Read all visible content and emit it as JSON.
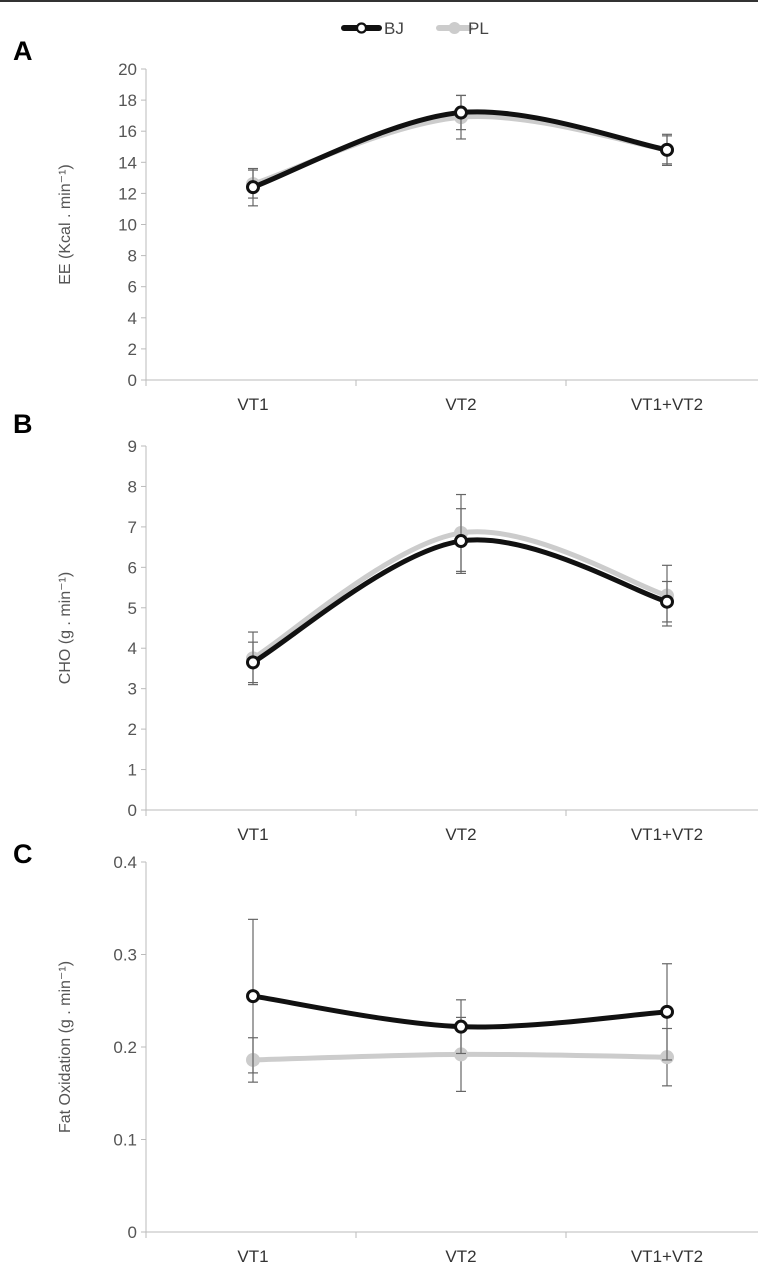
{
  "legend": [
    {
      "name": "BJ",
      "color": "#111111"
    },
    {
      "name": "PL",
      "color": "#cccccc"
    }
  ],
  "chart_data": [
    {
      "type": "line",
      "panel": "A",
      "ylabel": "EE (Kcal . min⁻¹)",
      "categories": [
        "VT1",
        "VT2",
        "VT1+VT2"
      ],
      "ylim": [
        0,
        20
      ],
      "yticks": [
        0,
        2,
        4,
        6,
        8,
        10,
        12,
        14,
        16,
        18,
        20
      ],
      "grid": false,
      "legend_position": "top-center",
      "series": [
        {
          "name": "BJ",
          "color": "#111111",
          "marker": "open-circle",
          "values": [
            12.4,
            17.2,
            14.8
          ],
          "error": [
            1.2,
            1.1,
            1.0
          ]
        },
        {
          "name": "PL",
          "color": "#cccccc",
          "marker": "filled-circle",
          "values": [
            12.6,
            16.9,
            14.8
          ],
          "error": [
            0.9,
            1.4,
            0.9
          ]
        }
      ]
    },
    {
      "type": "line",
      "panel": "B",
      "ylabel": "CHO (g . min⁻¹)",
      "categories": [
        "VT1",
        "VT2",
        "VT1+VT2"
      ],
      "ylim": [
        0,
        9
      ],
      "yticks": [
        0,
        1,
        2,
        3,
        4,
        5,
        6,
        7,
        8,
        9
      ],
      "grid": false,
      "series": [
        {
          "name": "BJ",
          "color": "#111111",
          "marker": "open-circle",
          "values": [
            3.65,
            6.65,
            5.15
          ],
          "error": [
            0.5,
            0.8,
            0.5
          ]
        },
        {
          "name": "PL",
          "color": "#cccccc",
          "marker": "filled-circle",
          "values": [
            3.75,
            6.85,
            5.3
          ],
          "error": [
            0.65,
            0.95,
            0.75
          ]
        }
      ]
    },
    {
      "type": "line",
      "panel": "C",
      "ylabel": "Fat Oxidation (g . min⁻¹)",
      "categories": [
        "VT1",
        "VT2",
        "VT1+VT2"
      ],
      "ylim": [
        0,
        0.4
      ],
      "yticks": [
        0,
        0.1,
        0.2,
        0.3,
        0.4
      ],
      "grid": false,
      "series": [
        {
          "name": "BJ",
          "color": "#111111",
          "marker": "open-circle",
          "values": [
            0.255,
            0.222,
            0.238
          ],
          "error": [
            0.083,
            0.029,
            0.052
          ]
        },
        {
          "name": "PL",
          "color": "#cccccc",
          "marker": "filled-circle",
          "values": [
            0.186,
            0.192,
            0.189
          ],
          "error": [
            0.024,
            0.04,
            0.031
          ]
        }
      ]
    }
  ]
}
